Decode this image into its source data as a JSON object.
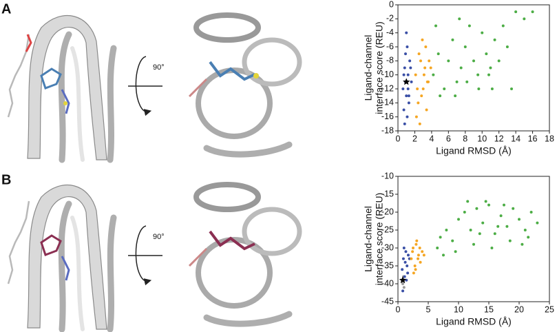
{
  "panels": [
    {
      "label": "A",
      "rotation": "90°"
    },
    {
      "label": "B",
      "rotation": "90°"
    }
  ],
  "chart_data": [
    {
      "type": "scatter",
      "xlabel": "Ligand RMSD (Å)",
      "ylabel": [
        "Ligand-channel",
        "interface score (REU)"
      ],
      "xlim": [
        0,
        18
      ],
      "xticks": [
        0,
        2,
        4,
        6,
        8,
        10,
        12,
        14,
        16,
        18
      ],
      "ylim": [
        -18,
        0
      ],
      "yticks": [
        -18,
        -16,
        -14,
        -12,
        -10,
        -8,
        -6,
        -4,
        -2,
        0
      ],
      "series": [
        {
          "color": "#3a4fa6",
          "marker": "circle",
          "x": [
            0.6,
            0.8,
            1.0,
            1.2,
            1.4,
            0.7,
            0.9,
            1.1,
            1.3,
            1.5,
            0.8,
            1.0,
            1.2,
            0.9,
            1.1,
            1.6,
            0.7,
            1.3
          ],
          "y": [
            -12,
            -9,
            -13,
            -10,
            -8,
            -15,
            -11,
            -6,
            -14,
            -9,
            -17,
            -4,
            -12,
            -7,
            -16,
            -11,
            -10,
            -13
          ]
        },
        {
          "color": "#f5a623",
          "marker": "circle",
          "x": [
            2.1,
            2.4,
            2.7,
            3.0,
            3.3,
            3.6,
            3.9,
            2.2,
            2.5,
            2.8,
            3.1,
            3.4,
            3.7,
            2.3,
            2.9,
            3.5,
            2.6,
            3.2
          ],
          "y": [
            -10,
            -14,
            -8,
            -12,
            -6,
            -11,
            -9,
            -16,
            -7,
            -13,
            -10,
            -15,
            -8,
            -12,
            -5,
            -11,
            -17,
            -9
          ]
        },
        {
          "color": "#4cad45",
          "marker": "circle",
          "x": [
            4.2,
            4.8,
            5.5,
            6,
            6.5,
            7,
            7.5,
            8,
            8.5,
            9,
            9.5,
            10,
            10.5,
            11,
            11.5,
            12,
            12.5,
            13,
            14,
            15,
            16,
            5,
            6.8,
            8.2,
            9.6,
            10.8,
            7.3,
            4.5,
            11.2,
            13.5
          ],
          "y": [
            -10,
            -7,
            -12,
            -8,
            -5,
            -11,
            -9,
            -6,
            -3,
            -8,
            -10,
            -4,
            -7,
            -9,
            -5,
            -8,
            -3,
            -6,
            -1,
            -2,
            -1,
            -13,
            -13,
            -11,
            -12,
            -10,
            -2,
            -3,
            -12,
            -12
          ]
        },
        {
          "color": "#000000",
          "marker": "star",
          "x": [
            1.0
          ],
          "y": [
            -11
          ]
        }
      ]
    },
    {
      "type": "scatter",
      "xlabel": "Ligand RMSD (Å)",
      "ylabel": [
        "Ligand-channel",
        "interface score (REU)"
      ],
      "xlim": [
        0,
        25
      ],
      "xticks": [
        0,
        5,
        10,
        15,
        20,
        25
      ],
      "ylim": [
        -45,
        -10
      ],
      "yticks": [
        -45,
        -40,
        -35,
        -30,
        -25,
        -20,
        -15,
        -10
      ],
      "series": [
        {
          "color": "#9a9a9a",
          "marker": "circle",
          "x": [
            0.8,
            1.0,
            0.9
          ],
          "y": [
            -40,
            -41,
            -38
          ]
        },
        {
          "color": "#3a4fa6",
          "marker": "circle",
          "x": [
            0.7,
            0.9,
            1.1,
            1.3,
            1.5,
            1.7,
            0.8,
            1.2,
            1.6,
            1.0,
            1.4,
            1.9
          ],
          "y": [
            -36,
            -33,
            -38,
            -31,
            -35,
            -32,
            -42,
            -34,
            -37,
            -30,
            -39,
            -33
          ]
        },
        {
          "color": "#f5a623",
          "marker": "circle",
          "x": [
            2.2,
            2.5,
            2.8,
            3.1,
            3.4,
            3.7,
            4.0,
            2.6,
            3.0,
            3.3,
            3.6,
            2.9,
            4.3,
            2.4
          ],
          "y": [
            -33,
            -30,
            -35,
            -28,
            -32,
            -34,
            -31,
            -37,
            -29,
            -33,
            -30,
            -36,
            -32,
            -31
          ]
        },
        {
          "color": "#4cad45",
          "marker": "circle",
          "x": [
            6.5,
            7,
            8,
            9,
            10,
            11,
            12,
            13,
            14,
            15,
            16,
            17,
            18,
            19,
            20,
            21,
            22,
            23,
            9.5,
            12.5,
            15.5,
            18.5,
            21.5,
            11.5,
            14.5,
            17.5,
            20.5,
            7.5,
            13.5,
            16.5
          ],
          "y": [
            -30,
            -27,
            -25,
            -28,
            -22,
            -20,
            -25,
            -19,
            -23,
            -18,
            -26,
            -21,
            -24,
            -19,
            -22,
            -25,
            -20,
            -23,
            -31,
            -29,
            -30,
            -28,
            -27,
            -17,
            -17,
            -18,
            -29,
            -32,
            -26,
            -24
          ]
        },
        {
          "color": "#000000",
          "marker": "star",
          "x": [
            0.8
          ],
          "y": [
            -39
          ]
        }
      ]
    }
  ]
}
